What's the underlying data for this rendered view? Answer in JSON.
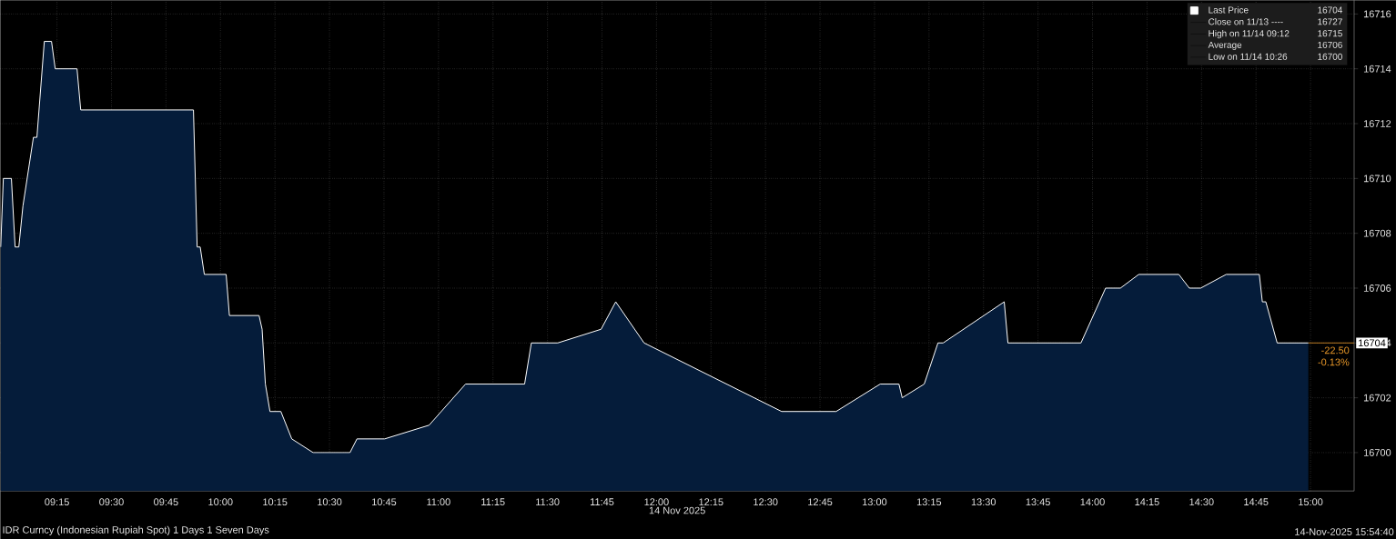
{
  "chart_data": {
    "type": "area",
    "xlabel": "14 Nov 2025",
    "x": [
      8.992,
      9.004,
      9.041,
      9.058,
      9.075,
      9.094,
      9.142,
      9.158,
      9.192,
      9.225,
      9.242,
      9.342,
      9.359,
      9.876,
      9.893,
      9.907,
      9.926,
      10.026,
      10.041,
      10.177,
      10.191,
      10.206,
      10.227,
      10.277,
      10.327,
      10.425,
      10.594,
      10.626,
      10.753,
      10.957,
      11.124,
      11.395,
      11.426,
      11.547,
      11.746,
      11.813,
      11.943,
      12.574,
      12.824,
      13.026,
      13.112,
      13.127,
      13.228,
      13.291,
      13.315,
      13.595,
      13.612,
      13.947,
      14.06,
      14.128,
      14.212,
      14.396,
      14.444,
      14.496,
      14.613,
      14.765,
      14.779,
      14.795,
      14.847,
      14.99
    ],
    "series": [
      {
        "name": "Last Price",
        "color": "#ffffff",
        "values": [
          16707.5,
          16710,
          16710,
          16707.5,
          16707.5,
          16709,
          16711.5,
          16711.5,
          16715,
          16715,
          16714,
          16714,
          16712.5,
          16712.5,
          16707.5,
          16707.5,
          16706.5,
          16706.5,
          16705,
          16705,
          16704.5,
          16702.5,
          16701.5,
          16701.5,
          16700.5,
          16700,
          16700,
          16700.5,
          16700.5,
          16701,
          16702.5,
          16702.5,
          16704,
          16704,
          16704.5,
          16705.5,
          16704,
          16701.5,
          16701.5,
          16702.5,
          16702.5,
          16702,
          16702.5,
          16704,
          16704,
          16705.5,
          16704,
          16704,
          16706,
          16706,
          16706.5,
          16706.5,
          16706,
          16706,
          16706.5,
          16706.5,
          16705.5,
          16705.5,
          16704,
          16704
        ]
      }
    ],
    "xlim": [
      8.99,
      15.2
    ],
    "ylim": [
      16698.6,
      16716.5
    ],
    "xticks": [
      {
        "value": 9.25,
        "label": "09:15"
      },
      {
        "value": 9.5,
        "label": "09:30"
      },
      {
        "value": 9.75,
        "label": "09:45"
      },
      {
        "value": 10,
        "label": "10:00"
      },
      {
        "value": 10.25,
        "label": "10:15"
      },
      {
        "value": 10.5,
        "label": "10:30"
      },
      {
        "value": 10.75,
        "label": "10:45"
      },
      {
        "value": 11,
        "label": "11:00"
      },
      {
        "value": 11.25,
        "label": "11:15"
      },
      {
        "value": 11.5,
        "label": "11:30"
      },
      {
        "value": 11.75,
        "label": "11:45"
      },
      {
        "value": 12,
        "label": "12:00"
      },
      {
        "value": 12.25,
        "label": "12:15"
      },
      {
        "value": 12.5,
        "label": "12:30"
      },
      {
        "value": 12.75,
        "label": "12:45"
      },
      {
        "value": 13,
        "label": "13:00"
      },
      {
        "value": 13.25,
        "label": "13:15"
      },
      {
        "value": 13.5,
        "label": "13:30"
      },
      {
        "value": 13.75,
        "label": "13:45"
      },
      {
        "value": 14,
        "label": "14:00"
      },
      {
        "value": 14.25,
        "label": "14:15"
      },
      {
        "value": 14.5,
        "label": "14:30"
      },
      {
        "value": 14.75,
        "label": "14:45"
      },
      {
        "value": 15,
        "label": "15:00"
      }
    ],
    "yticks": [
      16700,
      16702,
      16704,
      16706,
      16708,
      16710,
      16712,
      16714,
      16716
    ],
    "grid": true,
    "legend": "top right",
    "annotations": [
      "16704",
      "Close on 11/13 ----",
      "16727",
      "High on 11/14 09:12",
      "16715",
      "Average",
      "16706",
      "Low on 11/14 10:26",
      "16700",
      {
        "text": "16704",
        "y": 16704
      },
      "-22.50",
      "-0.13%",
      "IDR Curncy (Indonesian Rupiah Spot) 1 Days 1 Seven Days",
      "14-Nov-2025 15:54:40"
    ]
  }
}
